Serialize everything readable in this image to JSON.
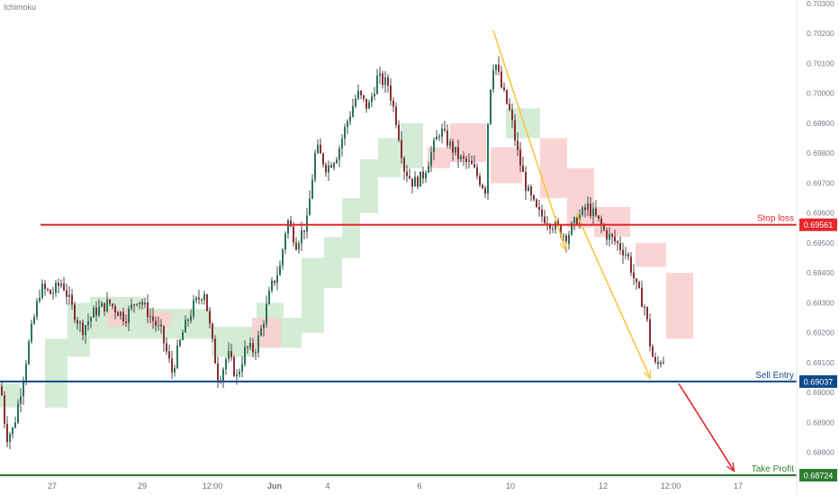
{
  "chart_data": {
    "type": "candlestick",
    "indicator_label": "Ichimoku",
    "x_tick_labels": [
      "27",
      "29",
      "12:00",
      "Jun",
      "4",
      "6",
      "10",
      "12",
      "12:00",
      "17"
    ],
    "y_tick_labels": [
      "0.70300",
      "0.70200",
      "0.70100",
      "0.70000",
      "0.69900",
      "0.69800",
      "0.69700",
      "0.69600",
      "0.69500",
      "0.69400",
      "0.69300",
      "0.69200",
      "0.69100",
      "0.69000",
      "0.68900",
      "0.68800"
    ],
    "ylim": [
      0.68727,
      0.703
    ],
    "price_path": [
      [
        0,
        0.6902
      ],
      [
        6,
        0.6885
      ],
      [
        14,
        0.6888
      ],
      [
        24,
        0.6904
      ],
      [
        32,
        0.6918
      ],
      [
        44,
        0.6935
      ],
      [
        56,
        0.6933
      ],
      [
        68,
        0.6937
      ],
      [
        78,
        0.6929
      ],
      [
        90,
        0.6921
      ],
      [
        104,
        0.6927
      ],
      [
        120,
        0.693
      ],
      [
        138,
        0.6925
      ],
      [
        152,
        0.6932
      ],
      [
        165,
        0.6926
      ],
      [
        178,
        0.692
      ],
      [
        190,
        0.6907
      ],
      [
        202,
        0.692
      ],
      [
        214,
        0.6929
      ],
      [
        226,
        0.6934
      ],
      [
        234,
        0.6918
      ],
      [
        242,
        0.6904
      ],
      [
        252,
        0.6913
      ],
      [
        262,
        0.6905
      ],
      [
        272,
        0.6915
      ],
      [
        282,
        0.6914
      ],
      [
        290,
        0.6922
      ],
      [
        300,
        0.6935
      ],
      [
        310,
        0.6942
      ],
      [
        318,
        0.6958
      ],
      [
        328,
        0.695
      ],
      [
        340,
        0.6957
      ],
      [
        350,
        0.6982
      ],
      [
        362,
        0.6975
      ],
      [
        374,
        0.698
      ],
      [
        384,
        0.699
      ],
      [
        396,
        0.7
      ],
      [
        408,
        0.6995
      ],
      [
        418,
        0.7005
      ],
      [
        430,
        0.7003
      ],
      [
        440,
        0.699
      ],
      [
        448,
        0.6975
      ],
      [
        458,
        0.697
      ],
      [
        468,
        0.6972
      ],
      [
        478,
        0.698
      ],
      [
        488,
        0.6988
      ],
      [
        498,
        0.6983
      ],
      [
        510,
        0.6978
      ],
      [
        522,
        0.6976
      ],
      [
        530,
        0.6972
      ],
      [
        538,
        0.6968
      ],
      [
        542,
        0.6998
      ],
      [
        548,
        0.7012
      ],
      [
        556,
        0.7002
      ],
      [
        566,
        0.6993
      ],
      [
        574,
        0.698
      ],
      [
        584,
        0.6968
      ],
      [
        596,
        0.696
      ],
      [
        606,
        0.6958
      ],
      [
        618,
        0.6955
      ],
      [
        628,
        0.6952
      ],
      [
        640,
        0.6958
      ],
      [
        652,
        0.6962
      ],
      [
        662,
        0.6958
      ],
      [
        672,
        0.6953
      ],
      [
        684,
        0.695
      ],
      [
        696,
        0.6946
      ],
      [
        706,
        0.6935
      ],
      [
        716,
        0.6928
      ],
      [
        722,
        0.6914
      ],
      [
        728,
        0.6908
      ],
      [
        734,
        0.6912
      ],
      [
        738,
        0.691
      ]
    ],
    "cloud": {
      "green": [
        [
          [
            0,
            0.6903
          ],
          [
            22,
            0.6895
          ]
        ],
        [
          [
            20,
            0.6895
          ],
          [
            50,
            0.6895
          ]
        ],
        [
          [
            50,
            0.6918
          ],
          [
            75,
            0.6895
          ]
        ],
        [
          [
            75,
            0.693
          ],
          [
            100,
            0.6912
          ]
        ],
        [
          [
            100,
            0.6932
          ],
          [
            160,
            0.6918
          ]
        ],
        [
          [
            160,
            0.6928
          ],
          [
            235,
            0.6918
          ]
        ],
        [
          [
            235,
            0.6922
          ],
          [
            285,
            0.6912
          ]
        ],
        [
          [
            285,
            0.693
          ],
          [
            315,
            0.6915
          ]
        ],
        [
          [
            315,
            0.6925
          ],
          [
            335,
            0.6915
          ]
        ],
        [
          [
            335,
            0.6945
          ],
          [
            360,
            0.692
          ]
        ],
        [
          [
            360,
            0.6952
          ],
          [
            380,
            0.6935
          ]
        ],
        [
          [
            380,
            0.6965
          ],
          [
            400,
            0.6945
          ]
        ],
        [
          [
            400,
            0.6978
          ],
          [
            420,
            0.696
          ]
        ],
        [
          [
            420,
            0.6985
          ],
          [
            445,
            0.6972
          ]
        ],
        [
          [
            445,
            0.699
          ],
          [
            470,
            0.6975
          ]
        ],
        [
          [
            562,
            0.6995
          ],
          [
            600,
            0.6985
          ]
        ]
      ],
      "red": [
        [
          [
            120,
            0.6928
          ],
          [
            145,
            0.6922
          ]
        ],
        [
          [
            165,
            0.6927
          ],
          [
            190,
            0.6922
          ]
        ],
        [
          [
            280,
            0.6925
          ],
          [
            312,
            0.6915
          ]
        ],
        [
          [
            475,
            0.6982
          ],
          [
            500,
            0.6975
          ]
        ],
        [
          [
            500,
            0.699
          ],
          [
            540,
            0.6977
          ]
        ],
        [
          [
            545,
            0.6982
          ],
          [
            580,
            0.697
          ]
        ],
        [
          [
            600,
            0.6985
          ],
          [
            630,
            0.6965
          ]
        ],
        [
          [
            630,
            0.6975
          ],
          [
            660,
            0.6955
          ]
        ],
        [
          [
            660,
            0.6962
          ],
          [
            700,
            0.6952
          ]
        ],
        [
          [
            706,
            0.695
          ],
          [
            740,
            0.6942
          ]
        ],
        [
          [
            740,
            0.694
          ],
          [
            770,
            0.6918
          ]
        ]
      ]
    },
    "trendlines": [
      {
        "from": [
          548,
          0.7021
        ],
        "to": [
          628,
          0.6948
        ],
        "color": "#f7c744"
      },
      {
        "from": [
          640,
          0.696
        ],
        "to": [
          722,
          0.6905
        ],
        "color": "#f7c744"
      },
      {
        "from": [
          754,
          0.6903
        ],
        "to": [
          815,
          0.6874
        ],
        "color": "#e5262b"
      }
    ],
    "levels": [
      {
        "name": "Stop loss",
        "value": "0.69561",
        "y": 0.69561,
        "color": "#e5262b",
        "x_start": 45,
        "label_bg": "#e5262b"
      },
      {
        "name": "Sell Entry",
        "value": "0.69037",
        "y": 0.69037,
        "color": "#0e4a8a",
        "x_start": 0,
        "label_bg": "#0e4a8a"
      },
      {
        "name": "Take Profit",
        "value": "0.68724",
        "y": 0.68724,
        "color": "#2e7d32",
        "x_start": 0,
        "label_bg": "#2e7d32"
      }
    ]
  }
}
